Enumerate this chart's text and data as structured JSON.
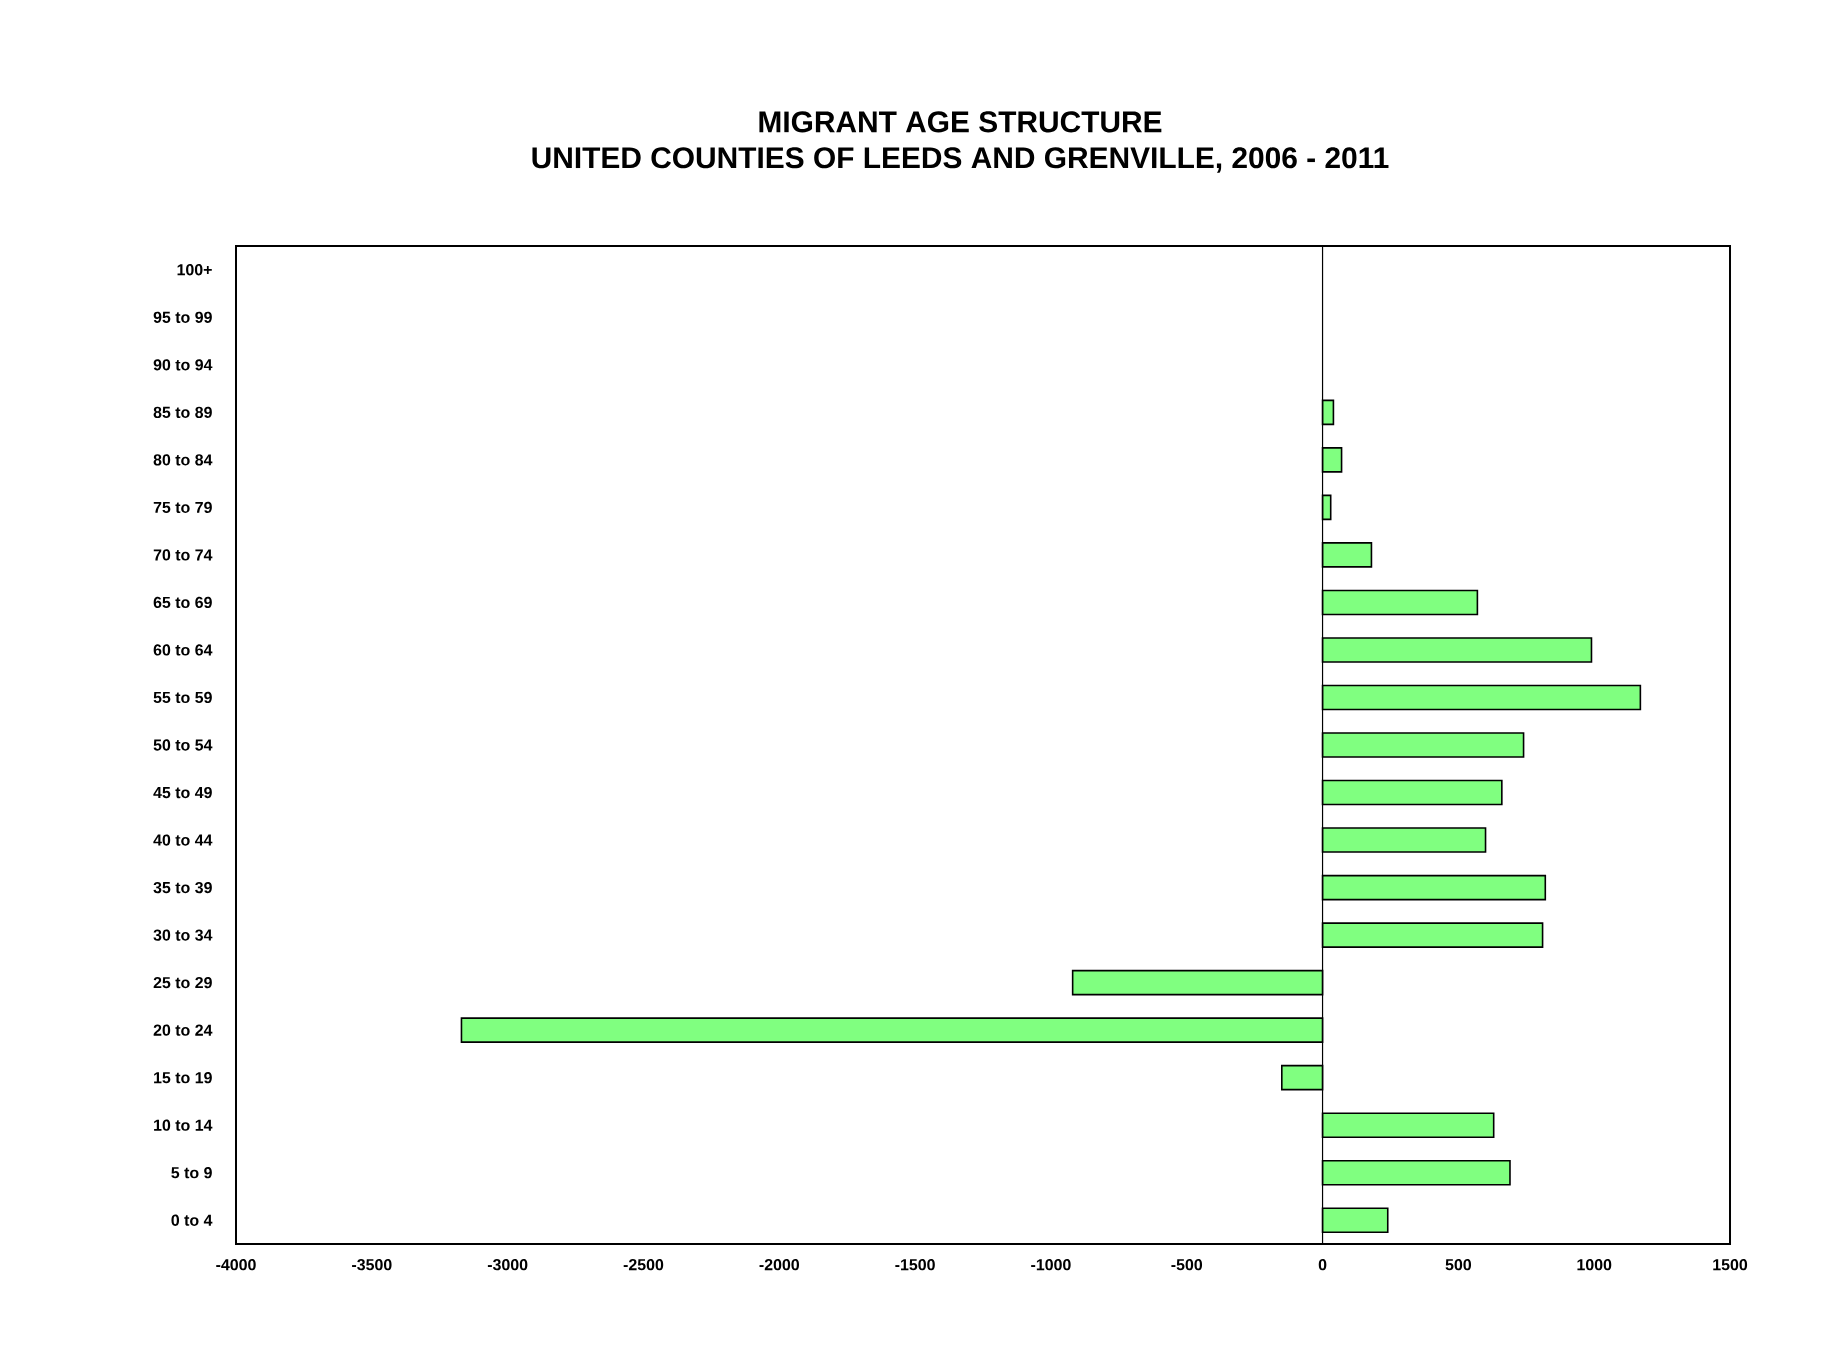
{
  "chart_data": {
    "type": "bar",
    "orientation": "horizontal",
    "title": "MIGRANT AGE STRUCTURE",
    "subtitle": "UNITED COUNTIES OF LEEDS AND GRENVILLE, 2006 - 2011",
    "categories": [
      "100+",
      "95 to 99",
      "90 to 94",
      "85 to 89",
      "80 to 84",
      "75 to 79",
      "70 to 74",
      "65 to 69",
      "60 to 64",
      "55 to 59",
      "50 to 54",
      "45 to 49",
      "40 to 44",
      "35 to 39",
      "30 to 34",
      "25 to 29",
      "20 to 24",
      "15 to 19",
      "10 to 14",
      "5 to 9",
      "0 to 4"
    ],
    "values": [
      null,
      null,
      null,
      40,
      70,
      30,
      180,
      570,
      990,
      1170,
      740,
      660,
      600,
      820,
      810,
      -920,
      -3170,
      -150,
      630,
      690,
      240
    ],
    "color": "#80ff80",
    "xlim": [
      -4000,
      1500
    ],
    "xticks": [
      -4000,
      -3500,
      -3000,
      -2500,
      -2000,
      -1500,
      -1000,
      -500,
      0,
      500,
      1000,
      1500
    ]
  }
}
